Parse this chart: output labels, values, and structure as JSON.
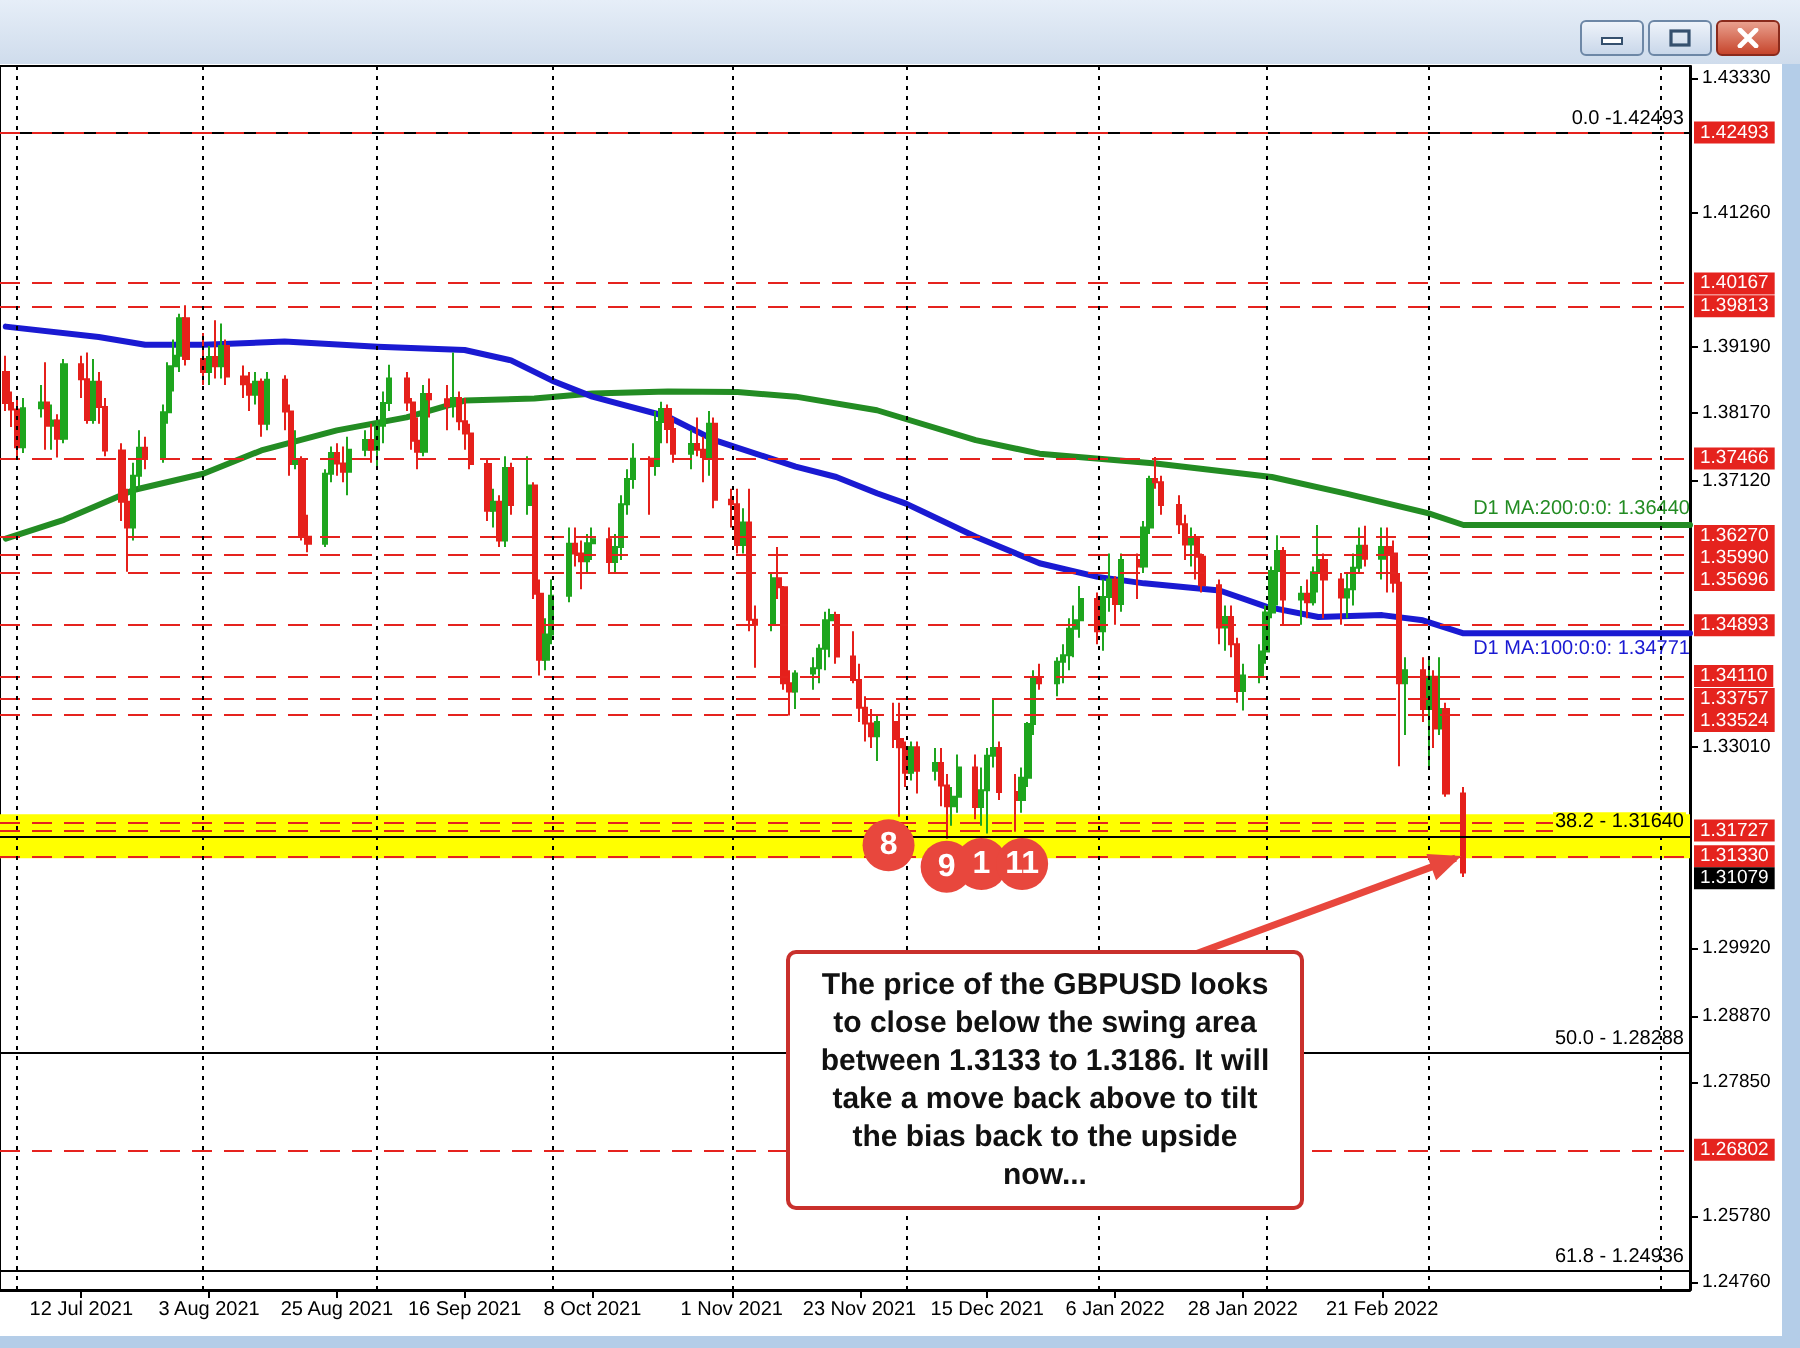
{
  "chart_data": {
    "type": "candlestick",
    "x": [
      "2021-06-29",
      "2021-06-30",
      "2021-07-01",
      "2021-07-02",
      "2021-07-05",
      "2021-07-06",
      "2021-07-07",
      "2021-07-08",
      "2021-07-09",
      "2021-07-12",
      "2021-07-13",
      "2021-07-14",
      "2021-07-15",
      "2021-07-16",
      "2021-07-19",
      "2021-07-20",
      "2021-07-21",
      "2021-07-22",
      "2021-07-23",
      "2021-07-26",
      "2021-07-27",
      "2021-07-28",
      "2021-07-29",
      "2021-07-30",
      "2021-08-02",
      "2021-08-03",
      "2021-08-04",
      "2021-08-05",
      "2021-08-06",
      "2021-08-09",
      "2021-08-10",
      "2021-08-11",
      "2021-08-12",
      "2021-08-13",
      "2021-08-16",
      "2021-08-17",
      "2021-08-18",
      "2021-08-19",
      "2021-08-20",
      "2021-08-23",
      "2021-08-24",
      "2021-08-25",
      "2021-08-26",
      "2021-08-27",
      "2021-08-30",
      "2021-08-31",
      "2021-09-01",
      "2021-09-02",
      "2021-09-03",
      "2021-09-06",
      "2021-09-07",
      "2021-09-08",
      "2021-09-09",
      "2021-09-10",
      "2021-09-13",
      "2021-09-14",
      "2021-09-15",
      "2021-09-16",
      "2021-09-17",
      "2021-09-20",
      "2021-09-21",
      "2021-09-22",
      "2021-09-23",
      "2021-09-24",
      "2021-09-27",
      "2021-09-28",
      "2021-09-29",
      "2021-09-30",
      "2021-10-01",
      "2021-10-04",
      "2021-10-05",
      "2021-10-06",
      "2021-10-07",
      "2021-10-08",
      "2021-10-11",
      "2021-10-12",
      "2021-10-13",
      "2021-10-14",
      "2021-10-15",
      "2021-10-18",
      "2021-10-19",
      "2021-10-20",
      "2021-10-21",
      "2021-10-22",
      "2021-10-25",
      "2021-10-26",
      "2021-10-27",
      "2021-10-28",
      "2021-10-29",
      "2021-11-01",
      "2021-11-02",
      "2021-11-03",
      "2021-11-04",
      "2021-11-05",
      "2021-11-08",
      "2021-11-09",
      "2021-11-10",
      "2021-11-11",
      "2021-11-12",
      "2021-11-15",
      "2021-11-16",
      "2021-11-17",
      "2021-11-18",
      "2021-11-19",
      "2021-11-22",
      "2021-11-23",
      "2021-11-24",
      "2021-11-25",
      "2021-11-26",
      "2021-11-29",
      "2021-11-30",
      "2021-12-01",
      "2021-12-02",
      "2021-12-03",
      "2021-12-06",
      "2021-12-07",
      "2021-12-08",
      "2021-12-09",
      "2021-12-10",
      "2021-12-13",
      "2021-12-14",
      "2021-12-15",
      "2021-12-16",
      "2021-12-17",
      "2021-12-20",
      "2021-12-21",
      "2021-12-22",
      "2021-12-23",
      "2021-12-24",
      "2021-12-27",
      "2021-12-28",
      "2021-12-29",
      "2021-12-30",
      "2021-12-31",
      "2022-01-03",
      "2022-01-04",
      "2022-01-05",
      "2022-01-06",
      "2022-01-07",
      "2022-01-10",
      "2022-01-11",
      "2022-01-12",
      "2022-01-13",
      "2022-01-14",
      "2022-01-17",
      "2022-01-18",
      "2022-01-19",
      "2022-01-20",
      "2022-01-21",
      "2022-01-24",
      "2022-01-25",
      "2022-01-26",
      "2022-01-27",
      "2022-01-28",
      "2022-01-31",
      "2022-02-01",
      "2022-02-02",
      "2022-02-03",
      "2022-02-04",
      "2022-02-07",
      "2022-02-08",
      "2022-02-09",
      "2022-02-10",
      "2022-02-11",
      "2022-02-14",
      "2022-02-15",
      "2022-02-16",
      "2022-02-17",
      "2022-02-18",
      "2022-02-21",
      "2022-02-22",
      "2022-02-23",
      "2022-02-24",
      "2022-02-25",
      "2022-02-28",
      "2022-03-01",
      "2022-03-02",
      "2022-03-03",
      "2022-03-04",
      "2022-03-07"
    ],
    "ohlc": [
      [
        1.388,
        1.3905,
        1.382,
        1.3832
      ],
      [
        1.3832,
        1.385,
        1.3795,
        1.3822
      ],
      [
        1.3822,
        1.384,
        1.3745,
        1.3764
      ],
      [
        1.3764,
        1.384,
        1.3755,
        1.3824
      ],
      [
        1.3824,
        1.386,
        1.381,
        1.3833
      ],
      [
        1.3833,
        1.3895,
        1.376,
        1.3797
      ],
      [
        1.3797,
        1.383,
        1.376,
        1.3805
      ],
      [
        1.3805,
        1.3815,
        1.3748,
        1.3777
      ],
      [
        1.3777,
        1.39,
        1.377,
        1.3892
      ],
      [
        1.3892,
        1.3905,
        1.384,
        1.3869
      ],
      [
        1.3869,
        1.391,
        1.38,
        1.3806
      ],
      [
        1.3806,
        1.39,
        1.38,
        1.3865
      ],
      [
        1.3865,
        1.388,
        1.38,
        1.3826
      ],
      [
        1.3826,
        1.384,
        1.375,
        1.3759
      ],
      [
        1.3759,
        1.377,
        1.365,
        1.368
      ],
      [
        1.368,
        1.37,
        1.3572,
        1.364
      ],
      [
        1.364,
        1.374,
        1.362,
        1.372
      ],
      [
        1.372,
        1.379,
        1.37,
        1.3763
      ],
      [
        1.3763,
        1.378,
        1.373,
        1.3746
      ],
      [
        1.3746,
        1.383,
        1.374,
        1.3818
      ],
      [
        1.3818,
        1.3895,
        1.38,
        1.3889
      ],
      [
        1.3889,
        1.393,
        1.385,
        1.3905
      ],
      [
        1.3905,
        1.397,
        1.388,
        1.3963
      ],
      [
        1.3963,
        1.3983,
        1.389,
        1.39
      ],
      [
        1.39,
        1.394,
        1.386,
        1.388
      ],
      [
        1.388,
        1.392,
        1.386,
        1.3903
      ],
      [
        1.3903,
        1.396,
        1.387,
        1.3889
      ],
      [
        1.3889,
        1.3955,
        1.387,
        1.392
      ],
      [
        1.392,
        1.393,
        1.386,
        1.3873
      ],
      [
        1.3873,
        1.389,
        1.384,
        1.3861
      ],
      [
        1.3861,
        1.388,
        1.382,
        1.3845
      ],
      [
        1.3845,
        1.388,
        1.383,
        1.3865
      ],
      [
        1.3865,
        1.387,
        1.378,
        1.38
      ],
      [
        1.38,
        1.388,
        1.379,
        1.3868
      ],
      [
        1.3868,
        1.3875,
        1.379,
        1.3819
      ],
      [
        1.3819,
        1.383,
        1.372,
        1.3738
      ],
      [
        1.3738,
        1.379,
        1.373,
        1.3745
      ],
      [
        1.3745,
        1.375,
        1.362,
        1.3626
      ],
      [
        1.3626,
        1.366,
        1.3602,
        1.3615
      ],
      [
        1.3615,
        1.373,
        1.361,
        1.3723
      ],
      [
        1.3723,
        1.3765,
        1.371,
        1.3755
      ],
      [
        1.3755,
        1.377,
        1.372,
        1.3739
      ],
      [
        1.3739,
        1.3765,
        1.371,
        1.3726
      ],
      [
        1.3726,
        1.378,
        1.369,
        1.376
      ],
      [
        1.376,
        1.379,
        1.375,
        1.3775
      ],
      [
        1.3775,
        1.38,
        1.374,
        1.376
      ],
      [
        1.376,
        1.381,
        1.373,
        1.3797
      ],
      [
        1.3797,
        1.385,
        1.377,
        1.3832
      ],
      [
        1.3832,
        1.3891,
        1.382,
        1.387
      ],
      [
        1.387,
        1.388,
        1.382,
        1.3833
      ],
      [
        1.3833,
        1.384,
        1.376,
        1.3774
      ],
      [
        1.3774,
        1.381,
        1.373,
        1.3757
      ],
      [
        1.3757,
        1.386,
        1.375,
        1.3846
      ],
      [
        1.3846,
        1.387,
        1.381,
        1.3838
      ],
      [
        1.3838,
        1.386,
        1.379,
        1.3827
      ],
      [
        1.3827,
        1.391,
        1.381,
        1.384
      ],
      [
        1.384,
        1.385,
        1.379,
        1.3804
      ],
      [
        1.3804,
        1.384,
        1.376,
        1.3785
      ],
      [
        1.3785,
        1.38,
        1.373,
        1.3738
      ],
      [
        1.3738,
        1.3745,
        1.365,
        1.3666
      ],
      [
        1.3666,
        1.37,
        1.364,
        1.368
      ],
      [
        1.368,
        1.369,
        1.361,
        1.362
      ],
      [
        1.362,
        1.375,
        1.361,
        1.3732
      ],
      [
        1.3732,
        1.374,
        1.366,
        1.3675
      ],
      [
        1.3675,
        1.375,
        1.366,
        1.3705
      ],
      [
        1.3705,
        1.371,
        1.353,
        1.3538
      ],
      [
        1.3538,
        1.356,
        1.3412,
        1.3436
      ],
      [
        1.3436,
        1.35,
        1.342,
        1.3475
      ],
      [
        1.3475,
        1.356,
        1.346,
        1.3535
      ],
      [
        1.3535,
        1.364,
        1.3525,
        1.3615
      ],
      [
        1.3615,
        1.364,
        1.358,
        1.36
      ],
      [
        1.36,
        1.362,
        1.3545,
        1.3588
      ],
      [
        1.3588,
        1.363,
        1.357,
        1.3616
      ],
      [
        1.3616,
        1.364,
        1.359,
        1.3622
      ],
      [
        1.3622,
        1.364,
        1.357,
        1.3587
      ],
      [
        1.3587,
        1.363,
        1.357,
        1.361
      ],
      [
        1.361,
        1.369,
        1.359,
        1.3676
      ],
      [
        1.3676,
        1.373,
        1.366,
        1.3715
      ],
      [
        1.3715,
        1.377,
        1.37,
        1.3746
      ],
      [
        1.3746,
        1.375,
        1.366,
        1.3735
      ],
      [
        1.3735,
        1.382,
        1.372,
        1.3803
      ],
      [
        1.3803,
        1.3834,
        1.377,
        1.3823
      ],
      [
        1.3823,
        1.383,
        1.377,
        1.3792
      ],
      [
        1.3792,
        1.381,
        1.374,
        1.3754
      ],
      [
        1.3754,
        1.379,
        1.373,
        1.3769
      ],
      [
        1.3769,
        1.381,
        1.375,
        1.376
      ],
      [
        1.376,
        1.378,
        1.371,
        1.3749
      ],
      [
        1.3749,
        1.382,
        1.372,
        1.38
      ],
      [
        1.38,
        1.381,
        1.367,
        1.3683
      ],
      [
        1.3683,
        1.37,
        1.364,
        1.3676
      ],
      [
        1.3676,
        1.37,
        1.36,
        1.3613
      ],
      [
        1.3613,
        1.367,
        1.36,
        1.3648
      ],
      [
        1.3648,
        1.37,
        1.348,
        1.3498
      ],
      [
        1.3498,
        1.352,
        1.3424,
        1.349
      ],
      [
        1.349,
        1.357,
        1.348,
        1.3562
      ],
      [
        1.3562,
        1.361,
        1.353,
        1.3548
      ],
      [
        1.3548,
        1.355,
        1.339,
        1.34
      ],
      [
        1.34,
        1.342,
        1.335,
        1.3387
      ],
      [
        1.3387,
        1.342,
        1.336,
        1.3415
      ],
      [
        1.3415,
        1.344,
        1.339,
        1.3423
      ],
      [
        1.3423,
        1.346,
        1.34,
        1.3453
      ],
      [
        1.3453,
        1.351,
        1.342,
        1.3497
      ],
      [
        1.3497,
        1.3515,
        1.344,
        1.3505
      ],
      [
        1.3505,
        1.351,
        1.343,
        1.3441
      ],
      [
        1.3441,
        1.348,
        1.34,
        1.3405
      ],
      [
        1.3405,
        1.343,
        1.334,
        1.3362
      ],
      [
        1.3362,
        1.338,
        1.331,
        1.3338
      ],
      [
        1.3338,
        1.336,
        1.33,
        1.3318
      ],
      [
        1.3318,
        1.335,
        1.328,
        1.334
      ],
      [
        1.334,
        1.337,
        1.33,
        1.3314
      ],
      [
        1.3314,
        1.337,
        1.3194,
        1.3301
      ],
      [
        1.3301,
        1.331,
        1.324,
        1.3262
      ],
      [
        1.3262,
        1.331,
        1.325,
        1.3301
      ],
      [
        1.3301,
        1.331,
        1.323,
        1.3265
      ],
      [
        1.3265,
        1.33,
        1.325,
        1.3277
      ],
      [
        1.3277,
        1.33,
        1.321,
        1.3242
      ],
      [
        1.3242,
        1.326,
        1.316,
        1.321
      ],
      [
        1.321,
        1.324,
        1.318,
        1.3225
      ],
      [
        1.3225,
        1.329,
        1.32,
        1.327
      ],
      [
        1.327,
        1.329,
        1.319,
        1.3209
      ],
      [
        1.3209,
        1.327,
        1.318,
        1.3235
      ],
      [
        1.3235,
        1.33,
        1.3168,
        1.3288
      ],
      [
        1.3288,
        1.3374,
        1.327,
        1.33
      ],
      [
        1.33,
        1.331,
        1.322,
        1.3232
      ],
      [
        1.3232,
        1.326,
        1.3171,
        1.322
      ],
      [
        1.322,
        1.327,
        1.32,
        1.3254
      ],
      [
        1.3254,
        1.334,
        1.324,
        1.3337
      ],
      [
        1.3337,
        1.342,
        1.332,
        1.3408
      ],
      [
        1.3408,
        1.343,
        1.339,
        1.34
      ],
      [
        1.34,
        1.344,
        1.338,
        1.3433
      ],
      [
        1.3433,
        1.346,
        1.34,
        1.3443
      ],
      [
        1.3443,
        1.35,
        1.342,
        1.3484
      ],
      [
        1.3484,
        1.352,
        1.344,
        1.3497
      ],
      [
        1.3497,
        1.355,
        1.347,
        1.353
      ],
      [
        1.353,
        1.354,
        1.346,
        1.348
      ],
      [
        1.348,
        1.356,
        1.345,
        1.3533
      ],
      [
        1.3533,
        1.36,
        1.351,
        1.356
      ],
      [
        1.356,
        1.3565,
        1.349,
        1.3522
      ],
      [
        1.3522,
        1.36,
        1.351,
        1.359
      ],
      [
        1.359,
        1.36,
        1.353,
        1.358
      ],
      [
        1.358,
        1.365,
        1.357,
        1.364
      ],
      [
        1.364,
        1.372,
        1.363,
        1.3715
      ],
      [
        1.3715,
        1.3749,
        1.37,
        1.371
      ],
      [
        1.371,
        1.372,
        1.366,
        1.3675
      ],
      [
        1.3675,
        1.369,
        1.363,
        1.3645
      ],
      [
        1.3645,
        1.366,
        1.359,
        1.3614
      ],
      [
        1.3614,
        1.364,
        1.358,
        1.3625
      ],
      [
        1.3625,
        1.363,
        1.356,
        1.3595
      ],
      [
        1.3595,
        1.36,
        1.354,
        1.3551
      ],
      [
        1.3551,
        1.356,
        1.346,
        1.3486
      ],
      [
        1.3486,
        1.352,
        1.345,
        1.3502
      ],
      [
        1.3502,
        1.352,
        1.344,
        1.346
      ],
      [
        1.346,
        1.347,
        1.337,
        1.3388
      ],
      [
        1.3388,
        1.343,
        1.3358,
        1.3412
      ],
      [
        1.3412,
        1.346,
        1.34,
        1.3449
      ],
      [
        1.3449,
        1.352,
        1.343,
        1.3509
      ],
      [
        1.3509,
        1.358,
        1.35,
        1.3573
      ],
      [
        1.3573,
        1.3628,
        1.352,
        1.3604
      ],
      [
        1.3604,
        1.361,
        1.349,
        1.3529
      ],
      [
        1.3529,
        1.355,
        1.349,
        1.3538
      ],
      [
        1.3538,
        1.356,
        1.35,
        1.3525
      ],
      [
        1.3525,
        1.358,
        1.352,
        1.3571
      ],
      [
        1.3571,
        1.3644,
        1.354,
        1.359
      ],
      [
        1.359,
        1.36,
        1.35,
        1.356
      ],
      [
        1.356,
        1.357,
        1.349,
        1.3532
      ],
      [
        1.3532,
        1.357,
        1.35,
        1.3545
      ],
      [
        1.3545,
        1.36,
        1.352,
        1.3578
      ],
      [
        1.3578,
        1.364,
        1.357,
        1.3612
      ],
      [
        1.3612,
        1.3643,
        1.358,
        1.3592
      ],
      [
        1.3592,
        1.364,
        1.356,
        1.361
      ],
      [
        1.361,
        1.364,
        1.354,
        1.36
      ],
      [
        1.36,
        1.362,
        1.354,
        1.3555
      ],
      [
        1.3555,
        1.357,
        1.3272,
        1.34
      ],
      [
        1.34,
        1.344,
        1.332,
        1.342
      ],
      [
        1.342,
        1.344,
        1.334,
        1.336
      ],
      [
        1.336,
        1.344,
        1.327,
        1.341
      ],
      [
        1.341,
        1.342,
        1.33,
        1.333
      ],
      [
        1.333,
        1.344,
        1.332,
        1.336
      ],
      [
        1.336,
        1.337,
        1.3225,
        1.323
      ],
      [
        1.323,
        1.324,
        1.3101,
        1.31079
      ]
    ],
    "value_labels": [
      null,
      null,
      null,
      null,
      null,
      null,
      null,
      null,
      null,
      null,
      null,
      null,
      null,
      null,
      null,
      null,
      null,
      null,
      null,
      null,
      null,
      null,
      null,
      null,
      null,
      null,
      null,
      null,
      null,
      null,
      null,
      null,
      null,
      null,
      null,
      null,
      null,
      null,
      null,
      null,
      null,
      null,
      null,
      null,
      null,
      null,
      null,
      null,
      null,
      null,
      null,
      null,
      null,
      null,
      null,
      null,
      null,
      null,
      null,
      null,
      null,
      null,
      null,
      null,
      null,
      null,
      null,
      null,
      null,
      null,
      null,
      null,
      null,
      null,
      null,
      null,
      null,
      null,
      null,
      null,
      null,
      null,
      null,
      null,
      null,
      null,
      null,
      null,
      null,
      null,
      null,
      null,
      null,
      null,
      null,
      null,
      null,
      null,
      null,
      null,
      null,
      null,
      null,
      null,
      null,
      null,
      null,
      null,
      null,
      null,
      null,
      null,
      null,
      null,
      null,
      null,
      null,
      null,
      null,
      null,
      null,
      null,
      null,
      null,
      null,
      null,
      null,
      null,
      null,
      null,
      null,
      null,
      null,
      null,
      null,
      null,
      null,
      null,
      null,
      null,
      null,
      null,
      null,
      null,
      null,
      null,
      null,
      null,
      null,
      null,
      null,
      null,
      null,
      null,
      null,
      null,
      null,
      null,
      null,
      null,
      null,
      null,
      null,
      null,
      null,
      null,
      null,
      null,
      null,
      null,
      null,
      null,
      null,
      null,
      null,
      null,
      null,
      null,
      null,
      "1.31079"
    ],
    "colors": [
      "#e5201b",
      "#e5201b",
      "#e5201b",
      "#1ea51e",
      "#1ea51e",
      "#e5201b",
      "#1ea51e",
      "#e5201b",
      "#1ea51e",
      "#e5201b",
      "#e5201b",
      "#1ea51e",
      "#e5201b",
      "#e5201b",
      "#e5201b",
      "#e5201b",
      "#1ea51e",
      "#1ea51e",
      "#e5201b",
      "#1ea51e",
      "#1ea51e",
      "#1ea51e",
      "#1ea51e",
      "#e5201b",
      "#e5201b",
      "#1ea51e",
      "#e5201b",
      "#1ea51e",
      "#e5201b",
      "#e5201b",
      "#e5201b",
      "#1ea51e",
      "#e5201b",
      "#1ea51e",
      "#e5201b",
      "#e5201b",
      "#1ea51e",
      "#e5201b",
      "#e5201b",
      "#1ea51e",
      "#1ea51e",
      "#e5201b",
      "#e5201b",
      "#1ea51e",
      "#1ea51e",
      "#e5201b",
      "#1ea51e",
      "#1ea51e",
      "#1ea51e",
      "#e5201b",
      "#e5201b",
      "#e5201b",
      "#1ea51e",
      "#e5201b",
      "#e5201b",
      "#1ea51e",
      "#e5201b",
      "#e5201b",
      "#e5201b",
      "#e5201b",
      "#1ea51e",
      "#e5201b",
      "#1ea51e",
      "#e5201b",
      "#1ea51e",
      "#e5201b",
      "#e5201b",
      "#1ea51e",
      "#1ea51e",
      "#1ea51e",
      "#e5201b",
      "#e5201b",
      "#1ea51e",
      "#1ea51e",
      "#e5201b",
      "#1ea51e",
      "#1ea51e",
      "#1ea51e",
      "#1ea51e",
      "#e5201b",
      "#1ea51e",
      "#1ea51e",
      "#e5201b",
      "#e5201b",
      "#1ea51e",
      "#e5201b",
      "#e5201b",
      "#1ea51e",
      "#e5201b",
      "#e5201b",
      "#e5201b",
      "#1ea51e",
      "#e5201b",
      "#e5201b",
      "#1ea51e",
      "#e5201b",
      "#e5201b",
      "#e5201b",
      "#1ea51e",
      "#1ea51e",
      "#1ea51e",
      "#1ea51e",
      "#1ea51e",
      "#e5201b",
      "#e5201b",
      "#e5201b",
      "#e5201b",
      "#e5201b",
      "#1ea51e",
      "#e5201b",
      "#e5201b",
      "#e5201b",
      "#1ea51e",
      "#e5201b",
      "#1ea51e",
      "#e5201b",
      "#e5201b",
      "#1ea51e",
      "#1ea51e",
      "#e5201b",
      "#1ea51e",
      "#1ea51e",
      "#1ea51e",
      "#e5201b",
      "#e5201b",
      "#1ea51e",
      "#1ea51e",
      "#1ea51e",
      "#e5201b",
      "#1ea51e",
      "#1ea51e",
      "#1ea51e",
      "#1ea51e",
      "#1ea51e",
      "#e5201b",
      "#1ea51e",
      "#1ea51e",
      "#e5201b",
      "#1ea51e",
      "#e5201b",
      "#1ea51e",
      "#1ea51e",
      "#e5201b",
      "#e5201b",
      "#e5201b",
      "#e5201b",
      "#1ea51e",
      "#e5201b",
      "#e5201b",
      "#e5201b",
      "#1ea51e",
      "#e5201b",
      "#e5201b",
      "#1ea51e",
      "#1ea51e",
      "#1ea51e",
      "#1ea51e",
      "#1ea51e",
      "#e5201b",
      "#1ea51e",
      "#e5201b",
      "#1ea51e",
      "#1ea51e",
      "#e5201b",
      "#e5201b",
      "#1ea51e",
      "#1ea51e",
      "#1ea51e",
      "#e5201b",
      "#1ea51e",
      "#e5201b",
      "#e5201b",
      "#e5201b",
      "#1ea51e",
      "#e5201b",
      "#1ea51e",
      "#e5201b",
      "#1ea51e",
      "#e5201b",
      "#e5201b"
    ],
    "series": [
      {
        "type": "line",
        "name": "D1 MA:200:0:0: 1.36440",
        "color": "#238c23",
        "x": [
          "2021-06-29",
          "2021-07-09",
          "2021-07-21",
          "2021-08-02",
          "2021-08-12",
          "2021-08-25",
          "2021-09-06",
          "2021-09-16",
          "2021-09-28",
          "2021-10-08",
          "2021-10-21",
          "2021-11-02",
          "2021-11-12",
          "2021-11-26",
          "2021-12-13",
          "2021-12-24",
          "2022-01-13",
          "2022-02-02",
          "2022-02-15",
          "2022-03-01",
          "2022-03-07",
          "2022-04-15"
        ],
        "values": [
          1.3623,
          1.3652,
          1.3698,
          1.3723,
          1.3759,
          1.379,
          1.381,
          1.3836,
          1.3839,
          1.3847,
          1.385,
          1.3849,
          1.3842,
          1.3821,
          1.3775,
          1.3754,
          1.3739,
          1.3718,
          1.3692,
          1.3662,
          1.3644,
          1.3644
        ]
      },
      {
        "type": "line",
        "name": "D1 MA:100:0:0: 1.34771",
        "color": "#1a1ad2",
        "x": [
          "2021-06-29",
          "2021-07-15",
          "2021-07-23",
          "2021-08-02",
          "2021-08-16",
          "2021-09-01",
          "2021-09-16",
          "2021-09-24",
          "2021-10-01",
          "2021-10-08",
          "2021-10-21",
          "2021-10-29",
          "2021-11-12",
          "2021-11-19",
          "2021-11-26",
          "2021-12-01",
          "2021-12-13",
          "2021-12-24",
          "2022-01-03",
          "2022-01-11",
          "2022-01-24",
          "2022-02-01",
          "2022-02-10",
          "2022-02-21",
          "2022-02-28",
          "2022-03-07",
          "2022-04-15"
        ],
        "values": [
          1.395,
          1.3934,
          1.3922,
          1.3922,
          1.3927,
          1.3919,
          1.3914,
          1.3898,
          1.3867,
          1.3842,
          1.3811,
          1.3775,
          1.3734,
          1.3718,
          1.3693,
          1.3677,
          1.3626,
          1.3585,
          1.3564,
          1.3554,
          1.3543,
          1.3518,
          1.3502,
          1.3505,
          1.3497,
          1.3477,
          1.3477
        ]
      }
    ],
    "xlim": [
      "2021-06-28",
      "2022-04-15"
    ],
    "xticks": [
      {
        "value": "2021-07-12",
        "label": "12 Jul 2021"
      },
      {
        "value": "2021-08-03",
        "label": "3 Aug 2021"
      },
      {
        "value": "2021-08-25",
        "label": "25 Aug 2021"
      },
      {
        "value": "2021-09-16",
        "label": "16 Sep 2021"
      },
      {
        "value": "2021-10-08",
        "label": "8 Oct 2021"
      },
      {
        "value": "2021-11-01",
        "label": "1 Nov 2021"
      },
      {
        "value": "2021-11-23",
        "label": "23 Nov 2021"
      },
      {
        "value": "2021-12-15",
        "label": "15 Dec 2021"
      },
      {
        "value": "2022-01-06",
        "label": "6 Jan 2022"
      },
      {
        "value": "2022-01-28",
        "label": "28 Jan 2022"
      },
      {
        "value": "2022-02-21",
        "label": "21 Feb 2022"
      }
    ],
    "ylim": [
      1.2464,
      1.4352
    ],
    "yticks": [
      {
        "value": 1.2476,
        "label": "1.24760"
      },
      {
        "value": 1.2578,
        "label": "1.25780"
      },
      {
        "value": 1.2785,
        "label": "1.27850"
      },
      {
        "value": 1.2887,
        "label": "1.28870"
      },
      {
        "value": 1.2992,
        "label": "1.29920"
      },
      {
        "value": 1.3301,
        "label": "1.33010"
      },
      {
        "value": 1.3712,
        "label": "1.37120"
      },
      {
        "value": 1.3817,
        "label": "1.38170"
      },
      {
        "value": 1.3919,
        "label": "1.39190"
      },
      {
        "value": 1.4126,
        "label": "1.41260"
      },
      {
        "value": 1.4333,
        "label": "1.43330"
      }
    ],
    "marker": "none",
    "bands": [
      {
        "axis": "y",
        "from": 1.313,
        "to": 1.3198,
        "color": "#ffff00"
      }
    ],
    "ref_lines": [
      {
        "axis": "y",
        "value": 1.42493,
        "color": "#000000"
      },
      {
        "axis": "y",
        "value": 1.42493,
        "label": "1.42493",
        "color": "#e5231e",
        "line_style": "dashed"
      },
      {
        "axis": "y",
        "value": 1.40167,
        "label": "1.40167",
        "color": "#e5231e",
        "line_style": "dashed"
      },
      {
        "axis": "y",
        "value": 1.39813,
        "label": "1.39813",
        "color": "#e5231e",
        "line_style": "dashed"
      },
      {
        "axis": "y",
        "value": 1.37466,
        "label": "1.37466",
        "color": "#e5231e",
        "line_style": "dashed"
      },
      {
        "axis": "y",
        "value": 1.3627,
        "label": "1.36270",
        "color": "#e5231e",
        "line_style": "dashed"
      },
      {
        "axis": "y",
        "value": 1.3599,
        "label": "1.35990",
        "color": "#e5231e",
        "line_style": "dashed"
      },
      {
        "axis": "y",
        "value": 1.35696,
        "label": "1.35696",
        "color": "#e5231e",
        "line_style": "dashed"
      },
      {
        "axis": "y",
        "value": 1.34893,
        "label": "1.34893",
        "color": "#e5231e",
        "line_style": "dashed"
      },
      {
        "axis": "y",
        "value": 1.3411,
        "label": "1.34110",
        "color": "#e5231e",
        "line_style": "dashed"
      },
      {
        "axis": "y",
        "value": 1.33757,
        "label": "1.33757",
        "color": "#e5231e",
        "line_style": "dashed"
      },
      {
        "axis": "y",
        "value": 1.33524,
        "label": "1.33524",
        "color": "#e5231e",
        "line_style": "dashed"
      },
      {
        "axis": "y",
        "value": 1.3186,
        "color": "#e5231e",
        "line_style": "dashed"
      },
      {
        "axis": "y",
        "value": 1.31727,
        "label": "1.31727",
        "color": "#e5231e",
        "line_style": "dashed"
      },
      {
        "axis": "y",
        "value": 1.3164,
        "color": "#000000"
      },
      {
        "axis": "y",
        "value": 1.3133,
        "label": "1.31330",
        "color": "#e5231e",
        "line_style": "dashed"
      },
      {
        "axis": "y",
        "value": 1.28288,
        "color": "#000000"
      },
      {
        "axis": "y",
        "value": 1.26802,
        "label": "1.26802",
        "color": "#e5231e",
        "line_style": "dashed"
      },
      {
        "axis": "y",
        "value": 1.24936,
        "color": "#000000"
      },
      {
        "axis": "x",
        "value": "2021-07-01",
        "color": "#000000",
        "line_style": "dotted"
      },
      {
        "axis": "x",
        "value": "2021-08-02",
        "color": "#000000",
        "line_style": "dotted"
      },
      {
        "axis": "x",
        "value": "2021-09-01",
        "color": "#000000",
        "line_style": "dotted"
      },
      {
        "axis": "x",
        "value": "2021-10-01",
        "color": "#000000",
        "line_style": "dotted"
      },
      {
        "axis": "x",
        "value": "2021-11-01",
        "color": "#000000",
        "line_style": "dotted"
      },
      {
        "axis": "x",
        "value": "2021-12-01",
        "color": "#000000",
        "line_style": "dotted"
      },
      {
        "axis": "x",
        "value": "2022-01-03",
        "color": "#000000",
        "line_style": "dotted"
      },
      {
        "axis": "x",
        "value": "2022-02-01",
        "color": "#000000",
        "line_style": "dotted"
      },
      {
        "axis": "x",
        "value": "2022-03-01",
        "color": "#000000",
        "line_style": "dotted"
      },
      {
        "axis": "x",
        "value": "2022-04-10",
        "color": "#000000",
        "line_style": "dotted"
      }
    ],
    "annotations": [
      {
        "text": "0.0 -1.42493",
        "x": "2022-04-15",
        "y": 1.42493
      },
      {
        "text": "38.2 - 1.31640",
        "x": "2022-04-15",
        "y": 1.3164
      },
      {
        "text": "50.0 - 1.28288",
        "x": "2022-04-15",
        "y": 1.28288
      },
      {
        "text": "61.8 - 1.24936",
        "x": "2022-04-15",
        "y": 1.24936
      },
      {
        "text": "8",
        "x": "2021-11-28",
        "y": 1.315
      },
      {
        "text": "9",
        "x": "2021-12-08",
        "y": 1.3117
      },
      {
        "text": "1",
        "x": "2021-12-14",
        "y": 1.3121
      },
      {
        "text": "11",
        "x": "2021-12-21",
        "y": 1.3121
      },
      {
        "text": "The price of the GBPUSD looks to close below the swing area between 1.3133 to 1.3186. It will take a move back above to tilt the bias back to the upside now...",
        "x": "2022-03-07",
        "y": 1.3133
      }
    ]
  }
}
